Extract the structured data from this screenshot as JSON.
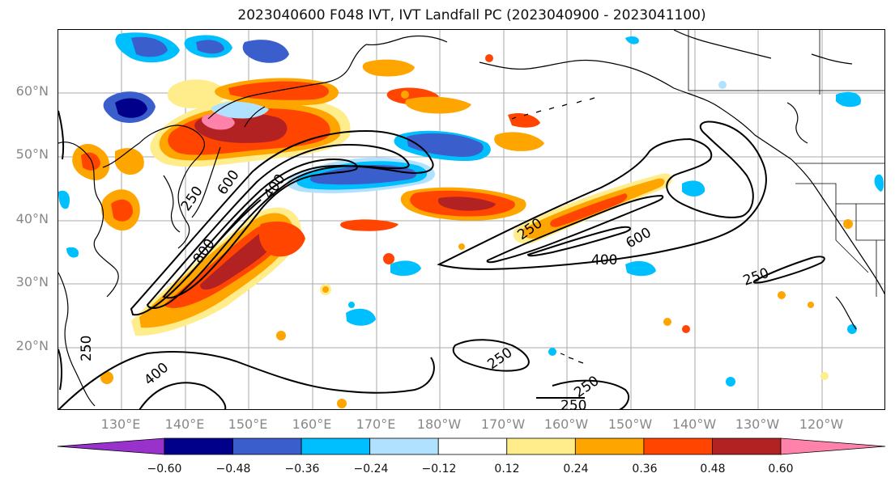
{
  "title": "2023040600 F048 IVT, IVT Landfall PC (2023040900 - 2023041100)",
  "map": {
    "lat_labels": [
      "60°N",
      "50°N",
      "40°N",
      "30°N",
      "20°N"
    ],
    "lon_labels": [
      "130°E",
      "140°E",
      "150°E",
      "160°E",
      "170°E",
      "180°W",
      "170°W",
      "160°W",
      "150°W",
      "140°W",
      "130°W",
      "120°W"
    ],
    "contour_labels": [
      "250",
      "400",
      "600",
      "800",
      "250",
      "400",
      "600",
      "250",
      "250",
      "400",
      "250",
      "250",
      "250"
    ]
  },
  "colorbar": {
    "ticks": [
      "−0.60",
      "−0.48",
      "−0.36",
      "−0.24",
      "−0.12",
      "0.12",
      "0.24",
      "0.36",
      "0.48",
      "0.60"
    ],
    "colors": [
      "#9932cc",
      "#00008b",
      "#3a5fcd",
      "#00bfff",
      "#b0e2ff",
      "#ffffff",
      "#ffec8b",
      "#ffa500",
      "#ff4500",
      "#b22222",
      "#ff82ab"
    ]
  }
}
